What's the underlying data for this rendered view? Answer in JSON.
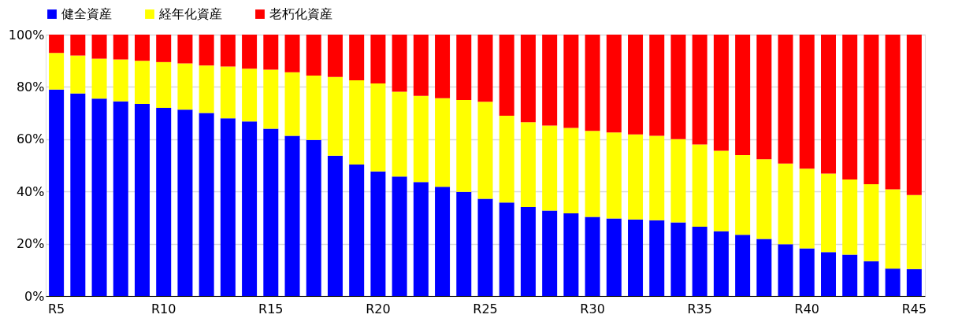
{
  "chart_data": {
    "type": "bar",
    "stacked": true,
    "categories": [
      "R5",
      null,
      null,
      null,
      null,
      "R10",
      null,
      null,
      null,
      null,
      "R15",
      null,
      null,
      null,
      null,
      "R20",
      null,
      null,
      null,
      null,
      "R25",
      null,
      null,
      null,
      null,
      "R30",
      null,
      null,
      null,
      null,
      "R35",
      null,
      null,
      null,
      null,
      "R40",
      null,
      null,
      null,
      null,
      "R45"
    ],
    "series": [
      {
        "name": "健全資産",
        "color": "#0000ff",
        "values": [
          79,
          77.5,
          75.5,
          74.5,
          73.5,
          72,
          71.3,
          70,
          68,
          66.8,
          64,
          61.3,
          59.7,
          53.7,
          50.3,
          47.7,
          45.7,
          43.6,
          41.8,
          39.8,
          37.2,
          35.8,
          34,
          32.7,
          31.6,
          30.3,
          29.7,
          29.3,
          29,
          28.2,
          26.5,
          24.8,
          23.4,
          21.8,
          19.8,
          18.2,
          16.8,
          15.8,
          13.3,
          10.5,
          10.3
        ]
      },
      {
        "name": "経年化資産",
        "color": "#ffff00",
        "values": [
          14,
          14.5,
          15.3,
          16,
          16.5,
          17.5,
          17.7,
          18.2,
          19.8,
          20.2,
          22.6,
          24.3,
          24.6,
          30.1,
          32.2,
          33.6,
          32.5,
          33,
          33.9,
          35.2,
          37.1,
          33.2,
          32.5,
          32.5,
          32.7,
          32.9,
          32.9,
          32.5,
          32.3,
          31.8,
          31.5,
          30.8,
          30.5,
          30.5,
          30.9,
          30.5,
          30,
          28.8,
          29.5,
          30.3,
          28.3
        ]
      },
      {
        "name": "老朽化資産",
        "color": "#ff0000",
        "values": [
          7,
          8,
          9.2,
          9.5,
          10,
          10.5,
          11,
          11.8,
          12.2,
          13,
          13.4,
          14.4,
          15.7,
          16.2,
          17.5,
          18.7,
          21.8,
          23.4,
          24.3,
          25,
          25.7,
          31,
          33.5,
          34.8,
          35.7,
          36.8,
          37.4,
          38.2,
          38.7,
          40,
          42,
          44.4,
          46.1,
          47.7,
          49.3,
          51.3,
          53.2,
          55.4,
          57.2,
          59.2,
          61.4
        ]
      }
    ],
    "ylim": [
      0,
      100
    ],
    "yticks": [
      {
        "value": 0,
        "label": "0%"
      },
      {
        "value": 20,
        "label": "20%"
      },
      {
        "value": 40,
        "label": "40%"
      },
      {
        "value": 60,
        "label": "60%"
      },
      {
        "value": 80,
        "label": "80%"
      },
      {
        "value": 100,
        "label": "100%"
      }
    ],
    "grid": "y",
    "legend": "top"
  }
}
